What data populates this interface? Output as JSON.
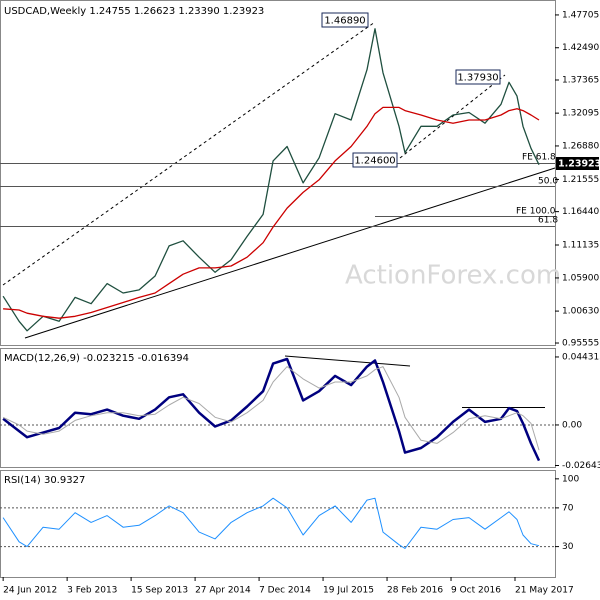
{
  "chart_data": [
    {
      "type": "line",
      "title": "USDCAD,Weekly  1.24755 1.26623 1.23390 1.23923",
      "x": [
        "2012-06-24",
        "2012-08-19",
        "2012-09-16",
        "2012-11-11",
        "2013-01-06",
        "2013-03-03",
        "2013-04-28",
        "2013-06-23",
        "2013-08-18",
        "2013-10-13",
        "2013-12-08",
        "2014-01-26",
        "2014-03-16",
        "2014-05-11",
        "2014-07-06",
        "2014-08-31",
        "2014-10-26",
        "2014-12-21",
        "2015-01-25",
        "2015-03-15",
        "2015-05-10",
        "2015-07-05",
        "2015-08-30",
        "2015-10-25",
        "2015-12-20",
        "2016-01-17",
        "2016-02-14",
        "2016-04-10",
        "2016-05-01",
        "2016-06-26",
        "2016-08-21",
        "2016-10-16",
        "2016-12-11",
        "2017-02-05",
        "2017-04-02",
        "2017-04-30",
        "2017-05-28",
        "2017-06-18",
        "2017-07-16",
        "2017-08-13"
      ],
      "xlim": [
        "2012-06-13",
        "2017-10-08"
      ],
      "ylim": [
        0.9524,
        1.4992
      ],
      "yticks": [
        1.47705,
        {
          "value": 1.4249,
          "label": "1.42490"
        },
        1.37365,
        1.32095,
        {
          "value": 1.2688,
          "label": "1.26880"
        },
        1.21555,
        {
          "value": 1.1644,
          "label": "1.16440"
        },
        1.11135,
        {
          "value": 1.059,
          "label": "1.05900"
        },
        {
          "value": 1.0063,
          "label": "1.00630"
        },
        0.95555
      ],
      "series": [
        {
          "color": "#1f4f3f",
          "values": [
            1.03,
            0.99,
            0.975,
            0.998,
            0.99,
            1.028,
            1.018,
            1.05,
            1.035,
            1.04,
            1.062,
            1.11,
            1.118,
            1.092,
            1.068,
            1.088,
            1.125,
            1.16,
            1.245,
            1.268,
            1.21,
            1.25,
            1.32,
            1.31,
            1.39,
            1.455,
            1.385,
            1.3,
            1.258,
            1.3,
            1.3,
            1.318,
            1.322,
            1.305,
            1.335,
            1.37,
            1.348,
            1.3,
            1.265,
            1.239
          ]
        },
        {
          "color": "#cc0000",
          "values": [
            1.01,
            1.008,
            1.003,
            0.998,
            0.995,
            0.998,
            1.004,
            1.012,
            1.02,
            1.028,
            1.035,
            1.05,
            1.065,
            1.075,
            1.075,
            1.078,
            1.092,
            1.115,
            1.14,
            1.17,
            1.195,
            1.215,
            1.245,
            1.268,
            1.3,
            1.32,
            1.33,
            1.33,
            1.325,
            1.318,
            1.31,
            1.305,
            1.31,
            1.31,
            1.318,
            1.325,
            1.328,
            1.325,
            1.318,
            1.31
          ]
        }
      ],
      "annotations": [
        "1.46890",
        "1.37930",
        "1.24600",
        "1.23923",
        "FE 61.8",
        "50.0",
        "FE 100.0",
        "61.8"
      ],
      "watermark": "ActionForex.com"
    },
    {
      "type": "line",
      "title": "MACD(12,26,9) -0.023215 -0.016394",
      "x": [
        "2012-06-24",
        "2012-08-19",
        "2012-09-16",
        "2012-11-11",
        "2013-01-06",
        "2013-03-03",
        "2013-04-28",
        "2013-06-23",
        "2013-08-18",
        "2013-10-13",
        "2013-12-08",
        "2014-01-26",
        "2014-03-16",
        "2014-05-11",
        "2014-07-06",
        "2014-08-31",
        "2014-10-26",
        "2014-12-21",
        "2015-01-25",
        "2015-03-15",
        "2015-05-10",
        "2015-07-05",
        "2015-08-30",
        "2015-10-25",
        "2015-12-20",
        "2016-01-17",
        "2016-02-14",
        "2016-04-10",
        "2016-05-01",
        "2016-06-26",
        "2016-08-21",
        "2016-10-16",
        "2016-12-11",
        "2017-02-05",
        "2017-04-02",
        "2017-04-30",
        "2017-05-28",
        "2017-06-18",
        "2017-07-16",
        "2017-08-13"
      ],
      "xlim": [
        "2012-06-13",
        "2017-10-08"
      ],
      "ylim": [
        -0.0274,
        0.0495
      ],
      "yticks": [
        0.044313,
        {
          "value": 0,
          "label": "0.00"
        },
        -0.026431
      ],
      "series": [
        {
          "color": "#00007f",
          "values": [
            0.004,
            -0.004,
            -0.008,
            -0.005,
            -0.002,
            0.008,
            0.007,
            0.01,
            0.006,
            0.004,
            0.01,
            0.018,
            0.02,
            0.008,
            -0.001,
            0.003,
            0.012,
            0.022,
            0.04,
            0.043,
            0.016,
            0.022,
            0.032,
            0.026,
            0.038,
            0.042,
            0.028,
            -0.004,
            -0.018,
            -0.015,
            -0.008,
            0.002,
            0.01,
            0.002,
            0.004,
            0.011,
            0.009,
            0.001,
            -0.012,
            -0.023215
          ]
        },
        {
          "color": "#aaaaaa",
          "values": [
            0.005,
            0.0,
            -0.004,
            -0.006,
            -0.004,
            0.003,
            0.006,
            0.008,
            0.008,
            0.006,
            0.007,
            0.013,
            0.018,
            0.014,
            0.005,
            0.002,
            0.008,
            0.016,
            0.028,
            0.038,
            0.03,
            0.024,
            0.028,
            0.028,
            0.032,
            0.036,
            0.038,
            0.018,
            0.005,
            -0.01,
            -0.012,
            -0.005,
            0.004,
            0.006,
            0.004,
            0.006,
            0.008,
            0.006,
            0.001,
            -0.016394
          ]
        }
      ]
    },
    {
      "type": "line",
      "title": "RSI(14) 30.9327",
      "x": [
        "2012-06-24",
        "2012-08-19",
        "2012-09-16",
        "2012-11-11",
        "2013-01-06",
        "2013-03-03",
        "2013-04-28",
        "2013-06-23",
        "2013-08-18",
        "2013-10-13",
        "2013-12-08",
        "2014-01-26",
        "2014-03-16",
        "2014-05-11",
        "2014-07-06",
        "2014-08-31",
        "2014-10-26",
        "2014-12-21",
        "2015-01-25",
        "2015-03-15",
        "2015-05-10",
        "2015-07-05",
        "2015-08-30",
        "2015-10-25",
        "2015-12-20",
        "2016-01-17",
        "2016-02-14",
        "2016-04-10",
        "2016-05-01",
        "2016-06-26",
        "2016-08-21",
        "2016-10-16",
        "2016-12-11",
        "2017-02-05",
        "2017-04-02",
        "2017-04-30",
        "2017-05-28",
        "2017-06-18",
        "2017-07-16",
        "2017-08-13"
      ],
      "xlim": [
        "2012-06-13",
        "2017-10-08"
      ],
      "xticks": [
        {
          "value": "2012-06-24",
          "label": "24 Jun 2012"
        },
        {
          "value": "2013-02-03",
          "label": "3 Feb 2013"
        },
        {
          "value": "2013-09-15",
          "label": "15 Sep 2013"
        },
        {
          "value": "2014-04-27",
          "label": "27 Apr 2014"
        },
        {
          "value": "2014-12-07",
          "label": "7 Dec 2014"
        },
        {
          "value": "2015-07-19",
          "label": "19 Jul 2015"
        },
        {
          "value": "2016-02-28",
          "label": "28 Feb 2016"
        },
        {
          "value": "2016-10-09",
          "label": "9 Oct 2016"
        },
        {
          "value": "2017-05-21",
          "label": "21 May 2017"
        }
      ],
      "ylim": [
        -1.4,
        108.1
      ],
      "yticks": [
        100,
        70,
        30
      ],
      "series": [
        {
          "color": "#1e90ff",
          "values": [
            60,
            35,
            30,
            50,
            48,
            65,
            55,
            62,
            50,
            52,
            62,
            72,
            65,
            45,
            38,
            55,
            65,
            72,
            80,
            70,
            42,
            62,
            72,
            55,
            78,
            80,
            45,
            32,
            28,
            50,
            48,
            58,
            60,
            48,
            60,
            66,
            58,
            42,
            33,
            30.9327
          ]
        }
      ]
    }
  ]
}
